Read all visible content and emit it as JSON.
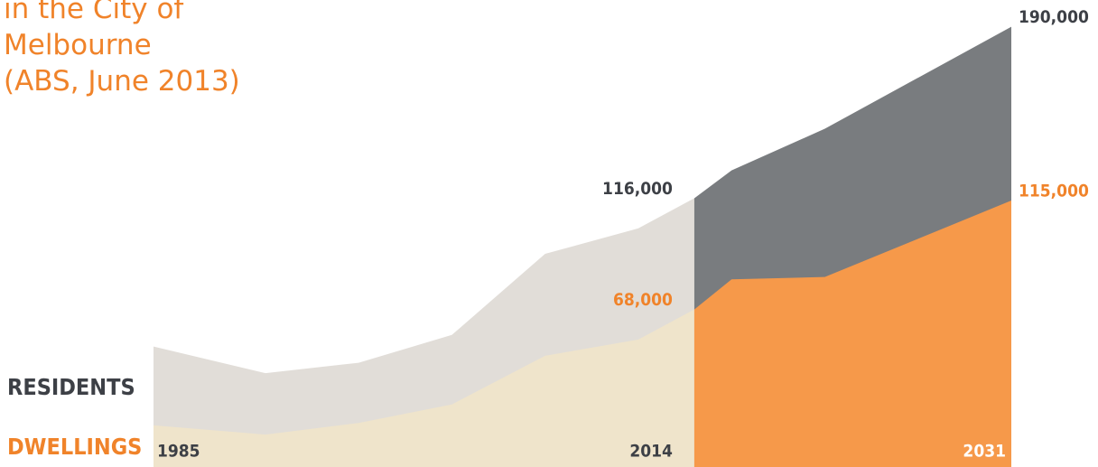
{
  "chart_data": {
    "type": "area",
    "title": [
      "in the City of",
      "Melbourne",
      "(ABS, June 2013)"
    ],
    "x": [
      1985,
      1991,
      1996,
      2001,
      2006,
      2011,
      2014,
      2016,
      2021,
      2031
    ],
    "xlim": [
      1985,
      2031
    ],
    "xticks": [
      1985,
      2014,
      2031
    ],
    "ylim": [
      0,
      200000
    ],
    "projected_from": 2014,
    "series": [
      {
        "name": "RESIDENTS",
        "color": "#e1ddd8",
        "projection_color": "#797c7f",
        "label_color": "#3d4046",
        "values": [
          52000,
          40500,
          45000,
          57000,
          92000,
          103000,
          116000,
          128000,
          146000,
          190000
        ],
        "value_labels": [
          null,
          null,
          null,
          null,
          null,
          null,
          "116,000",
          null,
          null,
          "190,000"
        ]
      },
      {
        "name": "DWELLINGS",
        "color": "#efe4cb",
        "projection_color": "#f6994a",
        "label_color": "#f0832a",
        "values": [
          18000,
          14000,
          19000,
          27000,
          48000,
          55000,
          68000,
          81000,
          82000,
          115000
        ],
        "value_labels": [
          null,
          null,
          null,
          null,
          null,
          null,
          "68,000",
          null,
          null,
          "115,000"
        ]
      }
    ]
  }
}
